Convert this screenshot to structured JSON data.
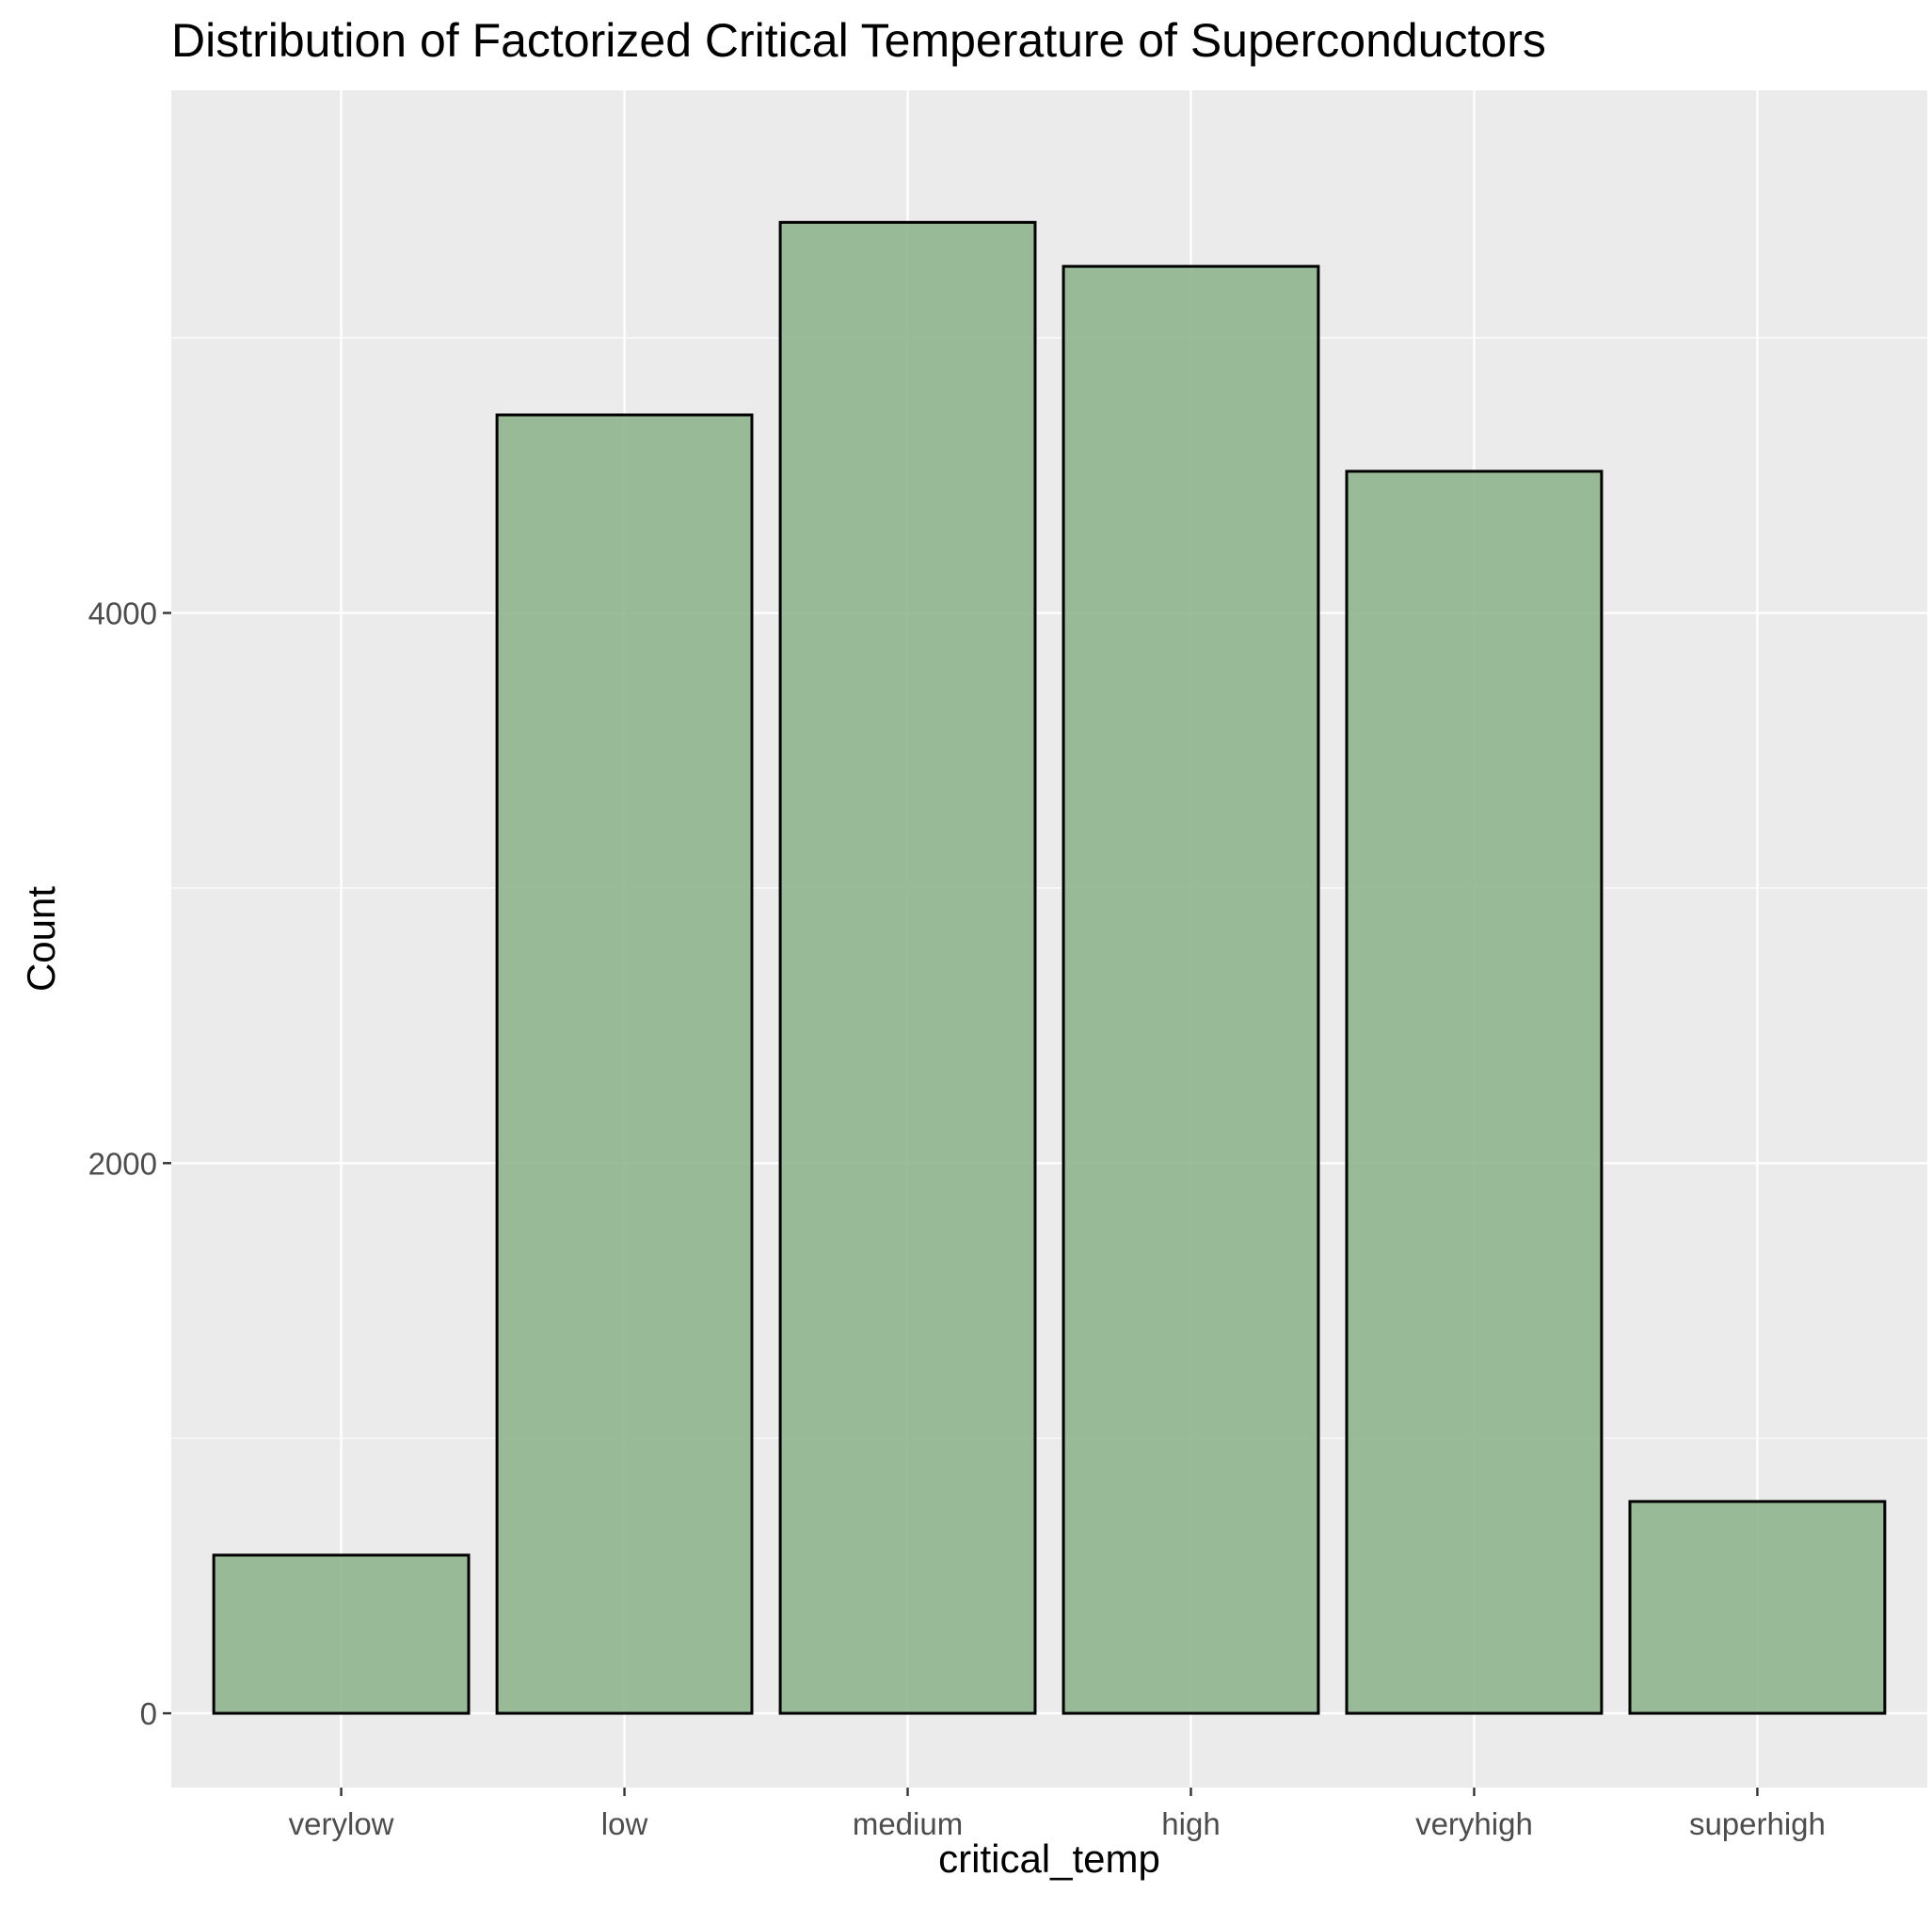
{
  "chart_data": {
    "type": "bar",
    "title": "Distribution of Factorized Critical Temperature of Superconductors",
    "xlabel": "critical_temp",
    "ylabel": "Count",
    "categories": [
      "verylow",
      "low",
      "medium",
      "high",
      "veryhigh",
      "superhigh"
    ],
    "values": [
      575,
      4720,
      5420,
      5260,
      4515,
      770
    ],
    "y_ticks": [
      "0",
      "2000",
      "4000"
    ],
    "ylim": [
      -270,
      5900
    ],
    "grid": true,
    "legend": "none",
    "colors": {
      "panel_background": "#EBEBEB",
      "grid": "#FFFFFF",
      "bar_fill": "#8FB58D",
      "bar_outline": "#000000",
      "tick_label": "#4D4D4D"
    }
  }
}
